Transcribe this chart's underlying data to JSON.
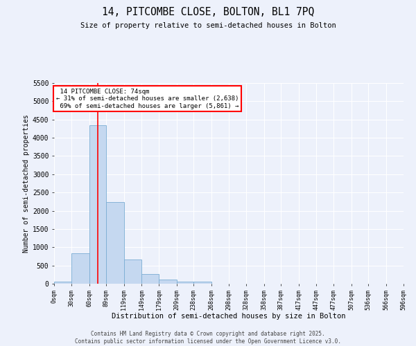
{
  "title": "14, PITCOMBE CLOSE, BOLTON, BL1 7PQ",
  "subtitle": "Size of property relative to semi-detached houses in Bolton",
  "xlabel": "Distribution of semi-detached houses by size in Bolton",
  "ylabel": "Number of semi-detached properties",
  "property_label": "14 PITCOMBE CLOSE: 74sqm",
  "pct_smaller": 31,
  "pct_larger": 69,
  "count_smaller": 2638,
  "count_larger": 5861,
  "bin_edges": [
    0,
    30,
    60,
    89,
    119,
    149,
    179,
    209,
    238,
    268,
    298,
    328,
    358,
    387,
    417,
    447,
    477,
    507,
    536,
    566,
    596
  ],
  "bar_heights": [
    50,
    840,
    4340,
    2240,
    670,
    260,
    120,
    60,
    50,
    0,
    0,
    0,
    0,
    0,
    0,
    0,
    0,
    0,
    0,
    0
  ],
  "bar_color": "#c5d8f0",
  "bar_edge_color": "#7aadd4",
  "red_line_x": 74,
  "ylim": [
    0,
    5500
  ],
  "yticks": [
    0,
    500,
    1000,
    1500,
    2000,
    2500,
    3000,
    3500,
    4000,
    4500,
    5000,
    5500
  ],
  "tick_labels": [
    "0sqm",
    "30sqm",
    "60sqm",
    "89sqm",
    "119sqm",
    "149sqm",
    "179sqm",
    "209sqm",
    "238sqm",
    "268sqm",
    "298sqm",
    "328sqm",
    "358sqm",
    "387sqm",
    "417sqm",
    "447sqm",
    "477sqm",
    "507sqm",
    "536sqm",
    "566sqm",
    "596sqm"
  ],
  "footer_line1": "Contains HM Land Registry data © Crown copyright and database right 2025.",
  "footer_line2": "Contains public sector information licensed under the Open Government Licence v3.0.",
  "background_color": "#edf1fb",
  "grid_color": "#ffffff"
}
